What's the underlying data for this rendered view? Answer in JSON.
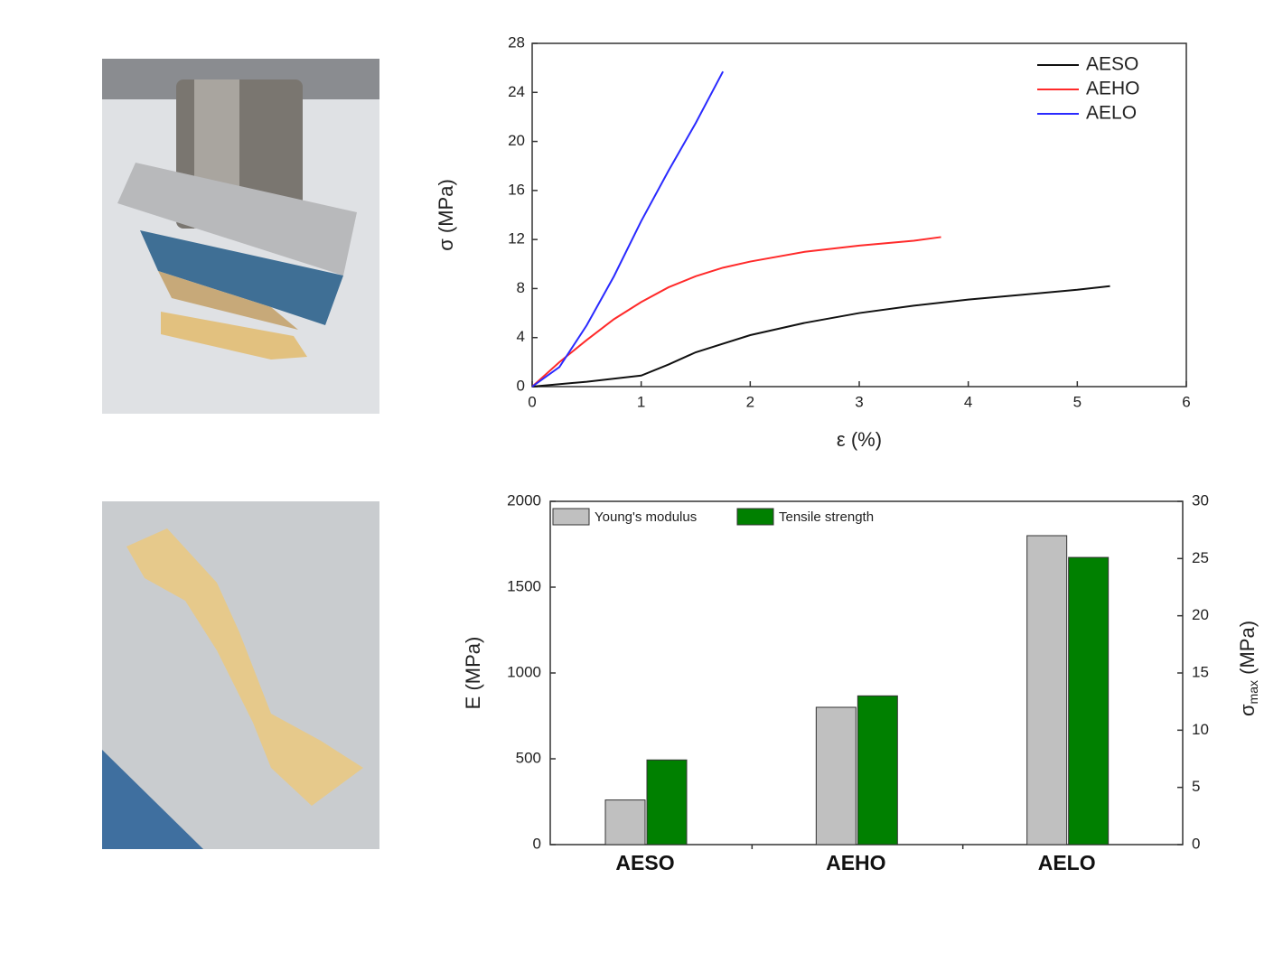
{
  "chart_data": [
    {
      "type": "line",
      "xlabel": "ε (%)",
      "ylabel": "σ (MPa)",
      "xlim": [
        0,
        6
      ],
      "xticks": [
        0,
        1,
        2,
        3,
        4,
        5,
        6
      ],
      "ylim": [
        0,
        28
      ],
      "yticks": [
        0,
        4,
        8,
        12,
        16,
        20,
        24,
        28
      ],
      "legend": "upper right",
      "series": [
        {
          "name": "AESO",
          "color": "#111111",
          "x": [
            0,
            0.5,
            1,
            1.25,
            1.5,
            2,
            2.5,
            3,
            3.5,
            4,
            4.5,
            5,
            5.3
          ],
          "values": [
            0,
            0.4,
            0.9,
            1.8,
            2.8,
            4.2,
            5.2,
            6,
            6.6,
            7.1,
            7.5,
            7.9,
            8.2
          ]
        },
        {
          "name": "AEHO",
          "color": "#ff2a2a",
          "x": [
            0,
            0.25,
            0.5,
            0.75,
            1,
            1.25,
            1.5,
            1.75,
            2,
            2.5,
            3,
            3.5,
            3.75
          ],
          "values": [
            0,
            2,
            3.8,
            5.5,
            6.9,
            8.1,
            9,
            9.7,
            10.2,
            11,
            11.5,
            11.9,
            12.2
          ]
        },
        {
          "name": "AELO",
          "color": "#2a2aff",
          "x": [
            0,
            0.25,
            0.5,
            0.75,
            1,
            1.25,
            1.5,
            1.75
          ],
          "values": [
            0,
            1.6,
            5,
            9,
            13.5,
            17.6,
            21.5,
            25.7
          ]
        }
      ]
    },
    {
      "type": "bar",
      "ylabel": "E (MPa)",
      "y2label": [
        "σ",
        "max",
        " (MPa)"
      ],
      "categories": [
        "AESO",
        "AEHO",
        "AELO"
      ],
      "ylim": [
        0,
        2000
      ],
      "yticks": [
        0,
        500,
        1000,
        1500,
        2000
      ],
      "y2lim": [
        0,
        30
      ],
      "y2ticks": [
        0,
        5,
        10,
        15,
        20,
        25,
        30
      ],
      "legend": "upper left",
      "series": [
        {
          "name": "Young's modulus",
          "color": "#c0c0c0",
          "values": [
            260,
            800,
            1800
          ]
        },
        {
          "name": "Tensile strength",
          "color": "#008000",
          "axis": "y2",
          "values": [
            7.4,
            13,
            25.1
          ]
        }
      ]
    }
  ]
}
